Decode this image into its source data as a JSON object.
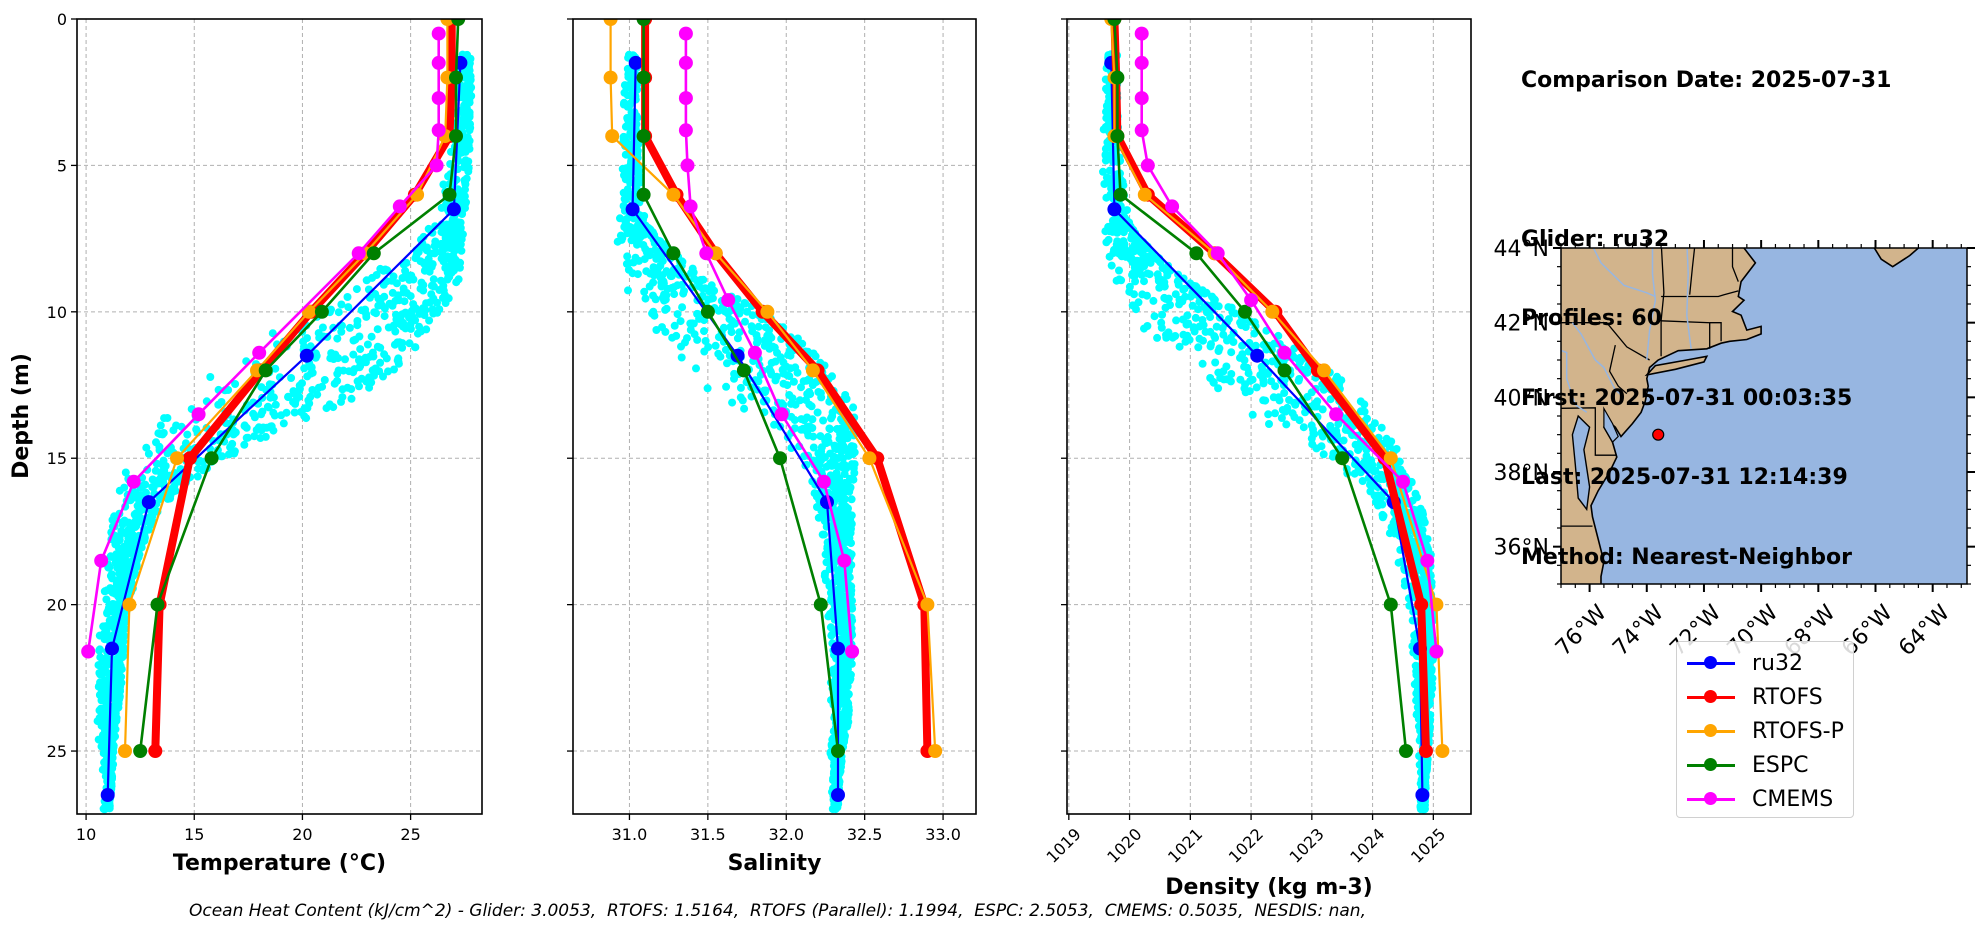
{
  "info_box": {
    "comparison_date": "Comparison Date: 2025-07-31",
    "glider": "Glider: ru32",
    "profiles": "Profiles: 60",
    "first": "First: 2025-07-31 00:03:35",
    "last": "Last: 2025-07-31 12:14:39",
    "method": "Method: Nearest-Neighbor"
  },
  "caption": "Ocean Heat Content (kJ/cm^2) - Glider: 3.0053,  RTOFS: 1.5164,  RTOFS (Parallel): 1.1994,  ESPC: 2.5053,  CMEMS: 0.5035,  NESDIS: nan,",
  "legend": [
    {
      "label": "ru32",
      "color": "#0000ff"
    },
    {
      "label": "RTOFS",
      "color": "#ff0000"
    },
    {
      "label": "RTOFS-P",
      "color": "#ffa500"
    },
    {
      "label": "ESPC",
      "color": "#008000"
    },
    {
      "label": "CMEMS",
      "color": "#ff00ff"
    }
  ],
  "chart_data": [
    {
      "type": "line",
      "id": "temperature",
      "xlabel": "Temperature (°C)",
      "ylabel": "Depth (m)",
      "xlim": [
        9.58,
        28.3
      ],
      "ylim": [
        27.15,
        0
      ],
      "xticks": [
        10,
        15,
        20,
        25
      ],
      "yticks": [
        0,
        5,
        10,
        15,
        20,
        25
      ],
      "grid": true,
      "glider_scatter_color": "#00ffff",
      "glider_scatter_envelope": [
        [
          1.2,
          27.0,
          27.8
        ],
        [
          3,
          26.9,
          27.8
        ],
        [
          5,
          26.7,
          27.7
        ],
        [
          7,
          26.0,
          27.5
        ],
        [
          8,
          24.5,
          27.4
        ],
        [
          9,
          22.5,
          27.2
        ],
        [
          10,
          20.0,
          26.6
        ],
        [
          11,
          18.0,
          25.6
        ],
        [
          12,
          16.0,
          24.4
        ],
        [
          13,
          14.0,
          22.5
        ],
        [
          14,
          13.0,
          19.0
        ],
        [
          15,
          12.0,
          16.5
        ],
        [
          16,
          11.5,
          14.5
        ],
        [
          17,
          11.2,
          13.2
        ],
        [
          18,
          11.0,
          12.6
        ],
        [
          19,
          10.8,
          12.3
        ],
        [
          20,
          10.7,
          12.0
        ],
        [
          21,
          10.6,
          11.8
        ],
        [
          22,
          10.5,
          11.7
        ],
        [
          23,
          10.4,
          11.6
        ],
        [
          24,
          10.5,
          11.4
        ],
        [
          25,
          10.6,
          11.3
        ],
        [
          26,
          10.8,
          11.2
        ],
        [
          27,
          10.8,
          11.1
        ]
      ],
      "series": [
        {
          "name": "ru32",
          "color": "#0000ff",
          "points": [
            [
              1.5,
              27.3
            ],
            [
              6.5,
              27.0
            ],
            [
              11.5,
              20.2
            ],
            [
              16.5,
              12.9
            ],
            [
              21.5,
              11.2
            ],
            [
              26.5,
              11.0
            ]
          ]
        },
        {
          "name": "RTOFS",
          "color": "#ff0000",
          "points": [
            [
              0,
              26.9
            ],
            [
              2,
              26.9
            ],
            [
              4,
              26.8
            ],
            [
              6,
              25.2
            ],
            [
              8,
              22.9
            ],
            [
              10,
              20.4
            ],
            [
              12,
              18.1
            ],
            [
              15,
              14.8
            ],
            [
              20,
              13.4
            ],
            [
              25,
              13.2
            ]
          ]
        },
        {
          "name": "RTOFS-P",
          "color": "#ffa500",
          "points": [
            [
              0,
              26.7
            ],
            [
              2,
              26.7
            ],
            [
              4,
              26.6
            ],
            [
              6,
              25.3
            ],
            [
              8,
              22.9
            ],
            [
              10,
              20.3
            ],
            [
              12,
              17.9
            ],
            [
              15,
              14.2
            ],
            [
              20,
              12.0
            ],
            [
              25,
              11.8
            ]
          ]
        },
        {
          "name": "ESPC",
          "color": "#008000",
          "points": [
            [
              0,
              27.2
            ],
            [
              2,
              27.1
            ],
            [
              4,
              27.1
            ],
            [
              6,
              26.8
            ],
            [
              8,
              23.3
            ],
            [
              10,
              20.9
            ],
            [
              12,
              18.3
            ],
            [
              15,
              15.8
            ],
            [
              20,
              13.3
            ],
            [
              25,
              12.5
            ]
          ]
        },
        {
          "name": "CMEMS",
          "color": "#ff00ff",
          "points": [
            [
              0.5,
              26.3
            ],
            [
              1.5,
              26.3
            ],
            [
              2.7,
              26.3
            ],
            [
              3.8,
              26.3
            ],
            [
              5,
              26.2
            ],
            [
              6.4,
              24.5
            ],
            [
              8,
              22.6
            ],
            [
              11.4,
              18.0
            ],
            [
              13.5,
              15.2
            ],
            [
              15.8,
              12.2
            ],
            [
              18.5,
              10.7
            ],
            [
              21.6,
              10.1
            ]
          ]
        }
      ]
    },
    {
      "type": "line",
      "id": "salinity",
      "xlabel": "Salinity",
      "ylabel": "",
      "xlim": [
        30.64,
        33.21
      ],
      "ylim": [
        27.15,
        0
      ],
      "xticks": [
        31.0,
        31.5,
        32.0,
        32.5,
        33.0
      ],
      "xtick_labels": [
        "31.0",
        "31.5",
        "32.0",
        "32.5",
        "33.0"
      ],
      "yticks": [
        0,
        5,
        10,
        15,
        20,
        25
      ],
      "grid": true,
      "glider_scatter_color": "#00ffff",
      "glider_scatter_envelope": [
        [
          1.2,
          30.98,
          31.05
        ],
        [
          3,
          30.96,
          31.05
        ],
        [
          5,
          30.95,
          31.06
        ],
        [
          7,
          30.9,
          31.1
        ],
        [
          8,
          30.92,
          31.3
        ],
        [
          9,
          30.95,
          31.5
        ],
        [
          10,
          31.0,
          31.85
        ],
        [
          11,
          31.1,
          32.1
        ],
        [
          12,
          31.3,
          32.3
        ],
        [
          13,
          31.6,
          32.42
        ],
        [
          14,
          31.9,
          32.45
        ],
        [
          15,
          32.05,
          32.45
        ],
        [
          16,
          32.15,
          32.42
        ],
        [
          17,
          32.2,
          32.42
        ],
        [
          18,
          32.22,
          32.42
        ],
        [
          19,
          32.24,
          32.42
        ],
        [
          20,
          32.26,
          32.42
        ],
        [
          21,
          32.27,
          32.42
        ],
        [
          22,
          32.28,
          32.42
        ],
        [
          23,
          32.28,
          32.4
        ],
        [
          24,
          32.28,
          32.4
        ],
        [
          25,
          32.28,
          32.36
        ],
        [
          26,
          32.29,
          32.34
        ],
        [
          27,
          32.29,
          32.33
        ]
      ],
      "series": [
        {
          "name": "ru32",
          "color": "#0000ff",
          "points": [
            [
              1.5,
              31.04
            ],
            [
              6.5,
              31.02
            ],
            [
              11.5,
              31.69
            ],
            [
              16.5,
              32.26
            ],
            [
              21.5,
              32.33
            ],
            [
              26.5,
              32.33
            ]
          ]
        },
        {
          "name": "RTOFS",
          "color": "#ff0000",
          "points": [
            [
              0,
              31.1
            ],
            [
              2,
              31.1
            ],
            [
              4,
              31.1
            ],
            [
              6,
              31.3
            ],
            [
              8,
              31.55
            ],
            [
              10,
              31.85
            ],
            [
              12,
              32.2
            ],
            [
              15,
              32.58
            ],
            [
              20,
              32.88
            ],
            [
              25,
              32.9
            ]
          ]
        },
        {
          "name": "RTOFS-P",
          "color": "#ffa500",
          "points": [
            [
              0,
              30.88
            ],
            [
              2,
              30.88
            ],
            [
              4,
              30.89
            ],
            [
              6,
              31.28
            ],
            [
              8,
              31.55
            ],
            [
              10,
              31.88
            ],
            [
              12,
              32.17
            ],
            [
              15,
              32.53
            ],
            [
              20,
              32.9
            ],
            [
              25,
              32.95
            ]
          ]
        },
        {
          "name": "ESPC",
          "color": "#008000",
          "points": [
            [
              0,
              31.09
            ],
            [
              2,
              31.09
            ],
            [
              4,
              31.09
            ],
            [
              6,
              31.09
            ],
            [
              8,
              31.28
            ],
            [
              10,
              31.5
            ],
            [
              12,
              31.73
            ],
            [
              15,
              31.96
            ],
            [
              20,
              32.22
            ],
            [
              25,
              32.33
            ]
          ]
        },
        {
          "name": "CMEMS",
          "color": "#ff00ff",
          "points": [
            [
              0.5,
              31.36
            ],
            [
              1.5,
              31.36
            ],
            [
              2.7,
              31.36
            ],
            [
              3.8,
              31.36
            ],
            [
              5,
              31.37
            ],
            [
              6.4,
              31.39
            ],
            [
              8,
              31.49
            ],
            [
              9.6,
              31.63
            ],
            [
              11.4,
              31.8
            ],
            [
              13.5,
              31.97
            ],
            [
              15.8,
              32.24
            ],
            [
              18.5,
              32.37
            ],
            [
              21.6,
              32.42
            ]
          ]
        }
      ]
    },
    {
      "type": "line",
      "id": "density",
      "xlabel": "Density (kg m-3)",
      "ylabel": "",
      "xlim": [
        1018.97,
        1025.62
      ],
      "ylim": [
        27.15,
        0
      ],
      "xticks": [
        1019,
        1020,
        1021,
        1022,
        1023,
        1024,
        1025
      ],
      "xtick_labels": [
        "1019",
        "1020",
        "1021",
        "1022",
        "1023",
        "1024",
        "1025"
      ],
      "yticks": [
        0,
        5,
        10,
        15,
        20,
        25
      ],
      "grid": true,
      "glider_scatter_color": "#00ffff",
      "glider_scatter_envelope": [
        [
          1.2,
          1019.6,
          1019.8
        ],
        [
          3,
          1019.55,
          1019.8
        ],
        [
          5,
          1019.55,
          1019.85
        ],
        [
          7,
          1019.55,
          1020.0
        ],
        [
          8,
          1019.6,
          1020.4
        ],
        [
          9,
          1019.7,
          1021.0
        ],
        [
          10,
          1019.9,
          1021.8
        ],
        [
          11,
          1020.3,
          1022.6
        ],
        [
          12,
          1020.8,
          1023.3
        ],
        [
          13,
          1021.5,
          1023.9
        ],
        [
          14,
          1022.3,
          1024.2
        ],
        [
          15,
          1023.2,
          1024.5
        ],
        [
          16,
          1023.8,
          1024.7
        ],
        [
          17,
          1024.1,
          1024.85
        ],
        [
          18,
          1024.3,
          1024.95
        ],
        [
          19,
          1024.45,
          1024.98
        ],
        [
          20,
          1024.55,
          1025.0
        ],
        [
          21,
          1024.6,
          1025.0
        ],
        [
          22,
          1024.65,
          1025.0
        ],
        [
          23,
          1024.7,
          1024.98
        ],
        [
          24,
          1024.72,
          1024.95
        ],
        [
          25,
          1024.75,
          1024.92
        ],
        [
          26,
          1024.78,
          1024.88
        ],
        [
          27,
          1024.78,
          1024.86
        ]
      ],
      "series": [
        {
          "name": "ru32",
          "color": "#0000ff",
          "points": [
            [
              1.5,
              1019.7
            ],
            [
              6.5,
              1019.75
            ],
            [
              11.5,
              1022.1
            ],
            [
              16.5,
              1024.35
            ],
            [
              21.5,
              1024.78
            ],
            [
              26.5,
              1024.82
            ]
          ]
        },
        {
          "name": "RTOFS",
          "color": "#ff0000",
          "points": [
            [
              0,
              1019.75
            ],
            [
              2,
              1019.78
            ],
            [
              4,
              1019.8
            ],
            [
              6,
              1020.3
            ],
            [
              8,
              1021.4
            ],
            [
              10,
              1022.4
            ],
            [
              12,
              1023.1
            ],
            [
              15,
              1024.2
            ],
            [
              20,
              1024.8
            ],
            [
              25,
              1024.88
            ]
          ]
        },
        {
          "name": "RTOFS-P",
          "color": "#ffa500",
          "points": [
            [
              0,
              1019.7
            ],
            [
              2,
              1019.75
            ],
            [
              4,
              1019.75
            ],
            [
              6,
              1020.25
            ],
            [
              8,
              1021.4
            ],
            [
              10,
              1022.35
            ],
            [
              12,
              1023.2
            ],
            [
              15,
              1024.3
            ],
            [
              20,
              1025.05
            ],
            [
              25,
              1025.15
            ]
          ]
        },
        {
          "name": "ESPC",
          "color": "#008000",
          "points": [
            [
              0,
              1019.75
            ],
            [
              2,
              1019.8
            ],
            [
              4,
              1019.8
            ],
            [
              6,
              1019.85
            ],
            [
              8,
              1021.1
            ],
            [
              10,
              1021.9
            ],
            [
              12,
              1022.55
            ],
            [
              15,
              1023.5
            ],
            [
              20,
              1024.3
            ],
            [
              25,
              1024.55
            ]
          ]
        },
        {
          "name": "CMEMS",
          "color": "#ff00ff",
          "points": [
            [
              0.5,
              1020.2
            ],
            [
              1.5,
              1020.2
            ],
            [
              2.7,
              1020.2
            ],
            [
              3.8,
              1020.2
            ],
            [
              5,
              1020.3
            ],
            [
              6.4,
              1020.7
            ],
            [
              8,
              1021.45
            ],
            [
              9.6,
              1022.0
            ],
            [
              11.4,
              1022.55
            ],
            [
              13.5,
              1023.4
            ],
            [
              15.8,
              1024.5
            ],
            [
              18.5,
              1024.9
            ],
            [
              21.6,
              1025.05
            ]
          ]
        }
      ]
    },
    {
      "type": "map",
      "id": "location-map",
      "lon_range": [
        -77.0,
        -62.8
      ],
      "lat_range": [
        35.0,
        44.0
      ],
      "lat_ticks": [
        36,
        38,
        40,
        42,
        44
      ],
      "lat_tick_labels": [
        "36°N",
        "38°N",
        "40°N",
        "42°N",
        "44°N"
      ],
      "lon_ticks": [
        -76,
        -74,
        -72,
        -70,
        -68,
        -66,
        -64
      ],
      "lon_tick_labels": [
        "76°W",
        "74°W",
        "72°W",
        "70°W",
        "68°W",
        "66°W",
        "64°W"
      ],
      "land_color": "#d2b48c",
      "ocean_color": "#97b6e1",
      "glider_location": {
        "lon": -73.6,
        "lat": 39.0,
        "color": "#ff0000"
      }
    }
  ]
}
